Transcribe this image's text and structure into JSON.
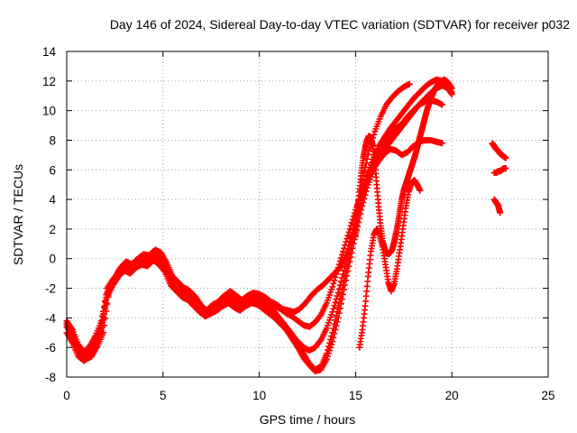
{
  "chart_data": {
    "type": "scatter",
    "title": "Day 146 of 2024, Sidereal Day-to-day VTEC variation (SDTVAR) for receiver p032",
    "xlabel": "GPS time / hours",
    "ylabel": "SDTVAR / TECUs",
    "xlim": [
      0,
      25
    ],
    "ylim": [
      -8,
      14
    ],
    "xticks": [
      0,
      5,
      10,
      15,
      20,
      25
    ],
    "yticks": [
      -8,
      -6,
      -4,
      -2,
      0,
      2,
      4,
      6,
      8,
      10,
      12,
      14
    ],
    "grid": true,
    "marker": "+",
    "color": "#ff0000",
    "series": [
      {
        "x": [
          0.0,
          0.3,
          0.6,
          0.9,
          1.2,
          1.5,
          1.8,
          2.1,
          2.4,
          2.7,
          3.0,
          3.3,
          3.6,
          3.9,
          4.2,
          4.5,
          4.8,
          5.1,
          5.4,
          5.7,
          6.0,
          6.3,
          6.6,
          6.9,
          7.2,
          7.5,
          7.8,
          8.1,
          8.4,
          8.7,
          9.0,
          9.3,
          9.6,
          9.9,
          10.2,
          10.5,
          10.8,
          11.1,
          11.4,
          11.7,
          12.0,
          12.3,
          12.6,
          12.9,
          13.2,
          13.5,
          13.8,
          14.1,
          14.4,
          14.7,
          15.0,
          15.3,
          15.6,
          15.9,
          16.2,
          16.5,
          16.8,
          17.1,
          17.4,
          17.7,
          18.0,
          18.3,
          18.6,
          18.9,
          19.2,
          19.5,
          19.8,
          20.0
        ],
        "y": [
          -4.2,
          -4.8,
          -5.8,
          -6.3,
          -5.9,
          -5.2,
          -4.2,
          -2.3,
          -1.5,
          -0.8,
          -0.3,
          -0.5,
          -0.1,
          0.2,
          0.1,
          0.5,
          0.3,
          -0.3,
          -1.1,
          -1.6,
          -1.9,
          -2.1,
          -2.5,
          -3.1,
          -3.6,
          -3.2,
          -3.0,
          -2.6,
          -2.3,
          -2.6,
          -2.9,
          -2.6,
          -2.5,
          -2.7,
          -3.1,
          -3.3,
          -3.6,
          -4.1,
          -4.6,
          -5.1,
          -5.7,
          -6.4,
          -7.1,
          -7.5,
          -7.3,
          -6.4,
          -5.0,
          -3.3,
          -1.5,
          0.4,
          2.3,
          4.1,
          5.6,
          6.7,
          7.6,
          8.2,
          8.8,
          9.3,
          9.8,
          10.3,
          10.8,
          11.2,
          11.6,
          11.9,
          12.1,
          12.0,
          11.6,
          11.2
        ]
      },
      {
        "x": [
          0.0,
          0.3,
          0.6,
          0.9,
          1.2,
          1.5,
          1.8,
          2.1,
          2.4,
          2.7,
          3.0,
          3.3,
          3.6,
          3.9,
          4.2,
          4.5,
          4.8,
          5.1,
          5.4,
          5.7,
          6.0,
          6.3,
          6.6,
          6.9,
          7.2,
          7.5,
          7.8,
          8.1,
          8.4,
          8.7,
          9.0,
          9.3,
          9.6,
          9.9,
          10.2,
          10.5,
          10.8,
          11.1,
          11.4,
          11.7,
          12.0,
          12.3,
          12.6,
          12.9,
          13.2,
          13.5,
          13.8,
          14.1,
          14.4,
          14.7,
          15.0,
          15.3,
          15.6,
          15.9,
          16.2,
          16.5,
          16.8,
          17.1,
          17.4,
          17.7,
          18.0,
          18.3,
          18.6,
          18.9,
          19.2,
          19.5,
          19.8,
          20.0
        ],
        "y": [
          -5.0,
          -5.7,
          -6.6,
          -6.9,
          -6.6,
          -5.5,
          -4.6,
          -2.0,
          -1.4,
          -0.9,
          -0.6,
          -0.8,
          -0.4,
          -0.2,
          -0.4,
          0.1,
          -0.1,
          -0.6,
          -1.5,
          -1.9,
          -2.3,
          -2.5,
          -2.9,
          -3.3,
          -3.8,
          -3.5,
          -3.2,
          -2.9,
          -2.7,
          -3.0,
          -3.2,
          -2.9,
          -2.8,
          -2.9,
          -3.3,
          -3.5,
          -3.9,
          -4.3,
          -4.8,
          -5.4,
          -6.0,
          -6.7,
          -7.2,
          -7.6,
          -7.5,
          -6.8,
          -5.6,
          -4.0,
          -2.1,
          -0.2,
          1.6,
          3.3,
          4.8,
          5.9,
          6.9,
          7.4,
          7.9,
          8.4,
          8.9,
          9.4,
          9.9,
          10.4,
          10.8,
          11.2,
          11.5,
          11.7,
          11.5,
          11.1
        ]
      },
      {
        "x": [
          0.0,
          0.3,
          0.6,
          0.9,
          1.2,
          1.5,
          1.8,
          2.1,
          2.4,
          2.7,
          3.0,
          3.3,
          3.6,
          3.9,
          4.2,
          4.5,
          4.8,
          5.1,
          5.4,
          5.7,
          6.0,
          6.3,
          6.6,
          6.9,
          7.2,
          7.5,
          7.8,
          8.1,
          8.4,
          8.7,
          9.0,
          9.3,
          9.6,
          9.9,
          10.2,
          10.5,
          10.8,
          11.1,
          11.4,
          11.7,
          12.0,
          12.3,
          12.6,
          12.9,
          13.2,
          13.5,
          13.8,
          14.1,
          14.4,
          14.7,
          15.0,
          15.3,
          15.6,
          15.9,
          16.2,
          16.5,
          16.8,
          17.1,
          17.4,
          17.7,
          18.0,
          18.3,
          18.6,
          18.9,
          19.2,
          19.5
        ],
        "y": [
          -4.6,
          -5.2,
          -6.1,
          -6.6,
          -6.4,
          -5.7,
          -4.9,
          -2.6,
          -1.8,
          -1.2,
          -0.8,
          -1.0,
          -0.6,
          -0.4,
          -0.5,
          -0.1,
          -0.4,
          -0.9,
          -1.8,
          -2.2,
          -2.6,
          -2.8,
          -3.2,
          -3.6,
          -3.9,
          -3.7,
          -3.5,
          -3.2,
          -3.0,
          -3.3,
          -3.5,
          -3.2,
          -3.0,
          -3.1,
          -3.4,
          -3.7,
          -4.0,
          -4.4,
          -4.8,
          -5.2,
          -5.6,
          -6.0,
          -6.2,
          -6.0,
          -5.5,
          -4.7,
          -3.6,
          -2.3,
          -0.8,
          0.9,
          2.6,
          4.2,
          5.5,
          6.5,
          7.3,
          7.9,
          8.4,
          8.8,
          9.1,
          9.6,
          10.0,
          10.4,
          10.6,
          10.7,
          10.6,
          10.4
        ]
      },
      {
        "x": [
          0.0,
          0.3,
          0.6,
          0.9,
          1.2,
          1.5,
          1.8,
          2.1,
          2.4,
          2.7,
          3.0,
          3.3,
          3.6,
          3.9,
          4.2,
          4.5,
          4.8,
          5.1,
          5.4,
          5.7,
          6.0,
          6.3,
          6.6,
          6.9,
          7.2,
          7.5,
          7.8,
          8.1,
          8.4,
          8.7,
          9.0,
          9.3,
          9.6,
          9.9,
          10.2,
          10.5,
          10.8,
          11.1,
          11.4,
          11.7,
          12.0,
          12.3,
          12.6,
          12.9,
          13.2,
          13.5,
          13.8,
          14.1,
          14.4,
          14.7,
          15.0,
          15.3,
          15.6,
          15.9,
          16.2,
          16.5,
          16.8,
          17.1,
          17.4,
          17.7,
          18.0,
          18.3,
          18.6,
          18.9,
          19.2,
          19.5
        ],
        "y": [
          -4.4,
          -5.0,
          -6.0,
          -6.4,
          -6.2,
          -5.6,
          -4.7,
          -2.4,
          -1.6,
          -1.0,
          -0.5,
          -0.7,
          -0.3,
          -0.1,
          -0.2,
          0.2,
          0.0,
          -0.5,
          -1.4,
          -1.8,
          -2.1,
          -2.3,
          -2.7,
          -3.3,
          -3.7,
          -3.4,
          -3.1,
          -2.8,
          -2.5,
          -2.8,
          -3.1,
          -2.8,
          -2.6,
          -2.6,
          -2.9,
          -3.0,
          -3.2,
          -3.4,
          -3.7,
          -3.9,
          -4.2,
          -4.5,
          -4.6,
          -4.3,
          -3.8,
          -3.0,
          -1.9,
          -0.6,
          0.7,
          2.0,
          3.3,
          4.4,
          5.3,
          6.0,
          6.6,
          7.1,
          7.4,
          7.3,
          7.0,
          7.2,
          7.6,
          7.9,
          8.0,
          8.0,
          7.9,
          7.8
        ]
      },
      {
        "x": [
          0.1,
          0.4,
          0.7,
          1.0,
          1.3,
          1.6,
          1.9,
          2.2,
          2.5,
          2.8,
          3.1,
          3.4,
          3.7,
          4.0,
          4.3,
          4.6,
          4.9,
          5.2,
          5.5,
          5.8,
          6.1,
          6.4,
          6.7,
          7.0,
          7.3,
          7.6,
          7.9,
          8.2,
          8.5,
          8.8,
          9.1,
          9.4,
          9.7,
          10.0,
          10.3,
          10.6,
          10.9,
          11.2,
          11.5,
          11.8,
          12.1,
          12.4,
          12.7,
          13.0,
          13.3,
          13.6,
          13.9,
          14.2,
          14.5,
          14.8,
          15.1,
          15.4,
          15.7,
          16.0,
          16.3,
          16.6,
          16.9,
          17.2,
          17.5,
          17.8
        ],
        "y": [
          -4.8,
          -5.3,
          -6.3,
          -6.8,
          -6.6,
          -5.9,
          -5.0,
          -2.1,
          -1.3,
          -0.6,
          -0.2,
          -0.4,
          0.0,
          0.3,
          0.2,
          0.6,
          0.4,
          -0.3,
          -1.2,
          -1.6,
          -2.0,
          -2.2,
          -2.6,
          -3.2,
          -3.5,
          -3.1,
          -2.9,
          -2.5,
          -2.2,
          -2.5,
          -2.8,
          -2.5,
          -2.3,
          -2.4,
          -2.6,
          -2.9,
          -3.1,
          -3.4,
          -3.5,
          -3.6,
          -3.4,
          -3.0,
          -2.5,
          -2.1,
          -1.8,
          -1.4,
          -1.0,
          -0.6,
          0.2,
          1.6,
          3.6,
          5.6,
          7.3,
          8.6,
          9.6,
          10.4,
          10.9,
          11.3,
          11.6,
          11.8
        ]
      },
      {
        "x": [
          15.0,
          15.1,
          15.2,
          15.3,
          15.4,
          15.5,
          15.6,
          15.7,
          15.8,
          15.9,
          16.0,
          16.1,
          16.2,
          16.3,
          16.4,
          16.5,
          16.6,
          16.7,
          16.8,
          16.9,
          17.0,
          17.1,
          17.2,
          17.3,
          17.4,
          17.5,
          17.6,
          17.7,
          17.8,
          17.9,
          18.0,
          18.1,
          18.2,
          18.3,
          18.4,
          18.5,
          18.6,
          18.7,
          18.8,
          18.9,
          19.0,
          19.1,
          19.2,
          19.3,
          19.4,
          19.5,
          19.6,
          19.7,
          19.8,
          19.9,
          20.0
        ],
        "y": [
          1.5,
          3.0,
          4.5,
          5.8,
          6.8,
          7.5,
          8.0,
          8.3,
          8.1,
          7.6,
          6.5,
          5.0,
          3.5,
          2.2,
          1.2,
          0.7,
          0.4,
          0.3,
          0.4,
          0.6,
          1.1,
          1.7,
          2.4,
          3.2,
          4.0,
          4.6,
          5.0,
          5.4,
          5.8,
          6.2,
          6.6,
          7.0,
          7.5,
          8.0,
          8.5,
          9.0,
          9.5,
          10.0,
          10.4,
          10.8,
          11.1,
          11.4,
          11.6,
          11.8,
          11.9,
          12.0,
          12.1,
          12.0,
          11.9,
          11.7,
          11.5
        ]
      },
      {
        "x": [
          15.2,
          15.35,
          15.5,
          15.65,
          15.8,
          15.95,
          16.1,
          16.25,
          16.4,
          16.55,
          16.7,
          16.85,
          17.0,
          17.15,
          17.3,
          17.45,
          17.6,
          17.75,
          17.9,
          18.05,
          18.2,
          18.35
        ],
        "y": [
          -6.0,
          -4.8,
          -3.2,
          -1.2,
          0.5,
          1.6,
          2.0,
          1.6,
          0.8,
          -0.4,
          -1.6,
          -2.2,
          -1.7,
          -0.7,
          0.6,
          2.0,
          3.4,
          4.5,
          5.1,
          5.3,
          5.0,
          4.6
        ]
      },
      {
        "x": [
          22.1,
          22.2,
          22.3,
          22.4,
          22.5,
          22.6,
          22.7,
          22.8
        ],
        "y": [
          7.8,
          7.6,
          7.4,
          7.3,
          7.1,
          7.0,
          6.9,
          6.8
        ]
      },
      {
        "x": [
          22.2,
          22.3,
          22.4,
          22.5,
          22.6,
          22.7,
          22.8
        ],
        "y": [
          5.8,
          5.8,
          5.9,
          5.9,
          6.0,
          6.1,
          6.1
        ]
      },
      {
        "x": [
          22.2,
          22.3,
          22.4,
          22.5
        ],
        "y": [
          4.0,
          3.8,
          3.6,
          3.1
        ]
      }
    ]
  }
}
